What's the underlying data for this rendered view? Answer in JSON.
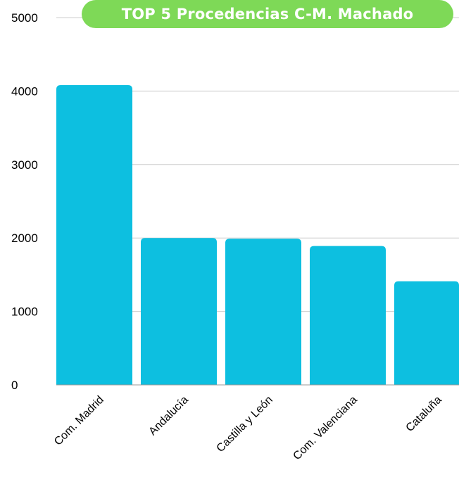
{
  "chart_data": {
    "type": "bar",
    "title": "TOP 5 Procedencias C-M. Machado",
    "categories": [
      "Com. Madrid",
      "Andalucía",
      "Castilla y León",
      "Com. Valenciana",
      "Cataluña"
    ],
    "values": [
      4080,
      2000,
      1990,
      1890,
      1410
    ],
    "ylim": [
      0,
      5000
    ],
    "yticks": [
      "0",
      "1000",
      "2000",
      "3000",
      "4000",
      "5000"
    ],
    "grid": true,
    "bar_color": "#0DBFE0",
    "title_color": "#7ED957"
  }
}
